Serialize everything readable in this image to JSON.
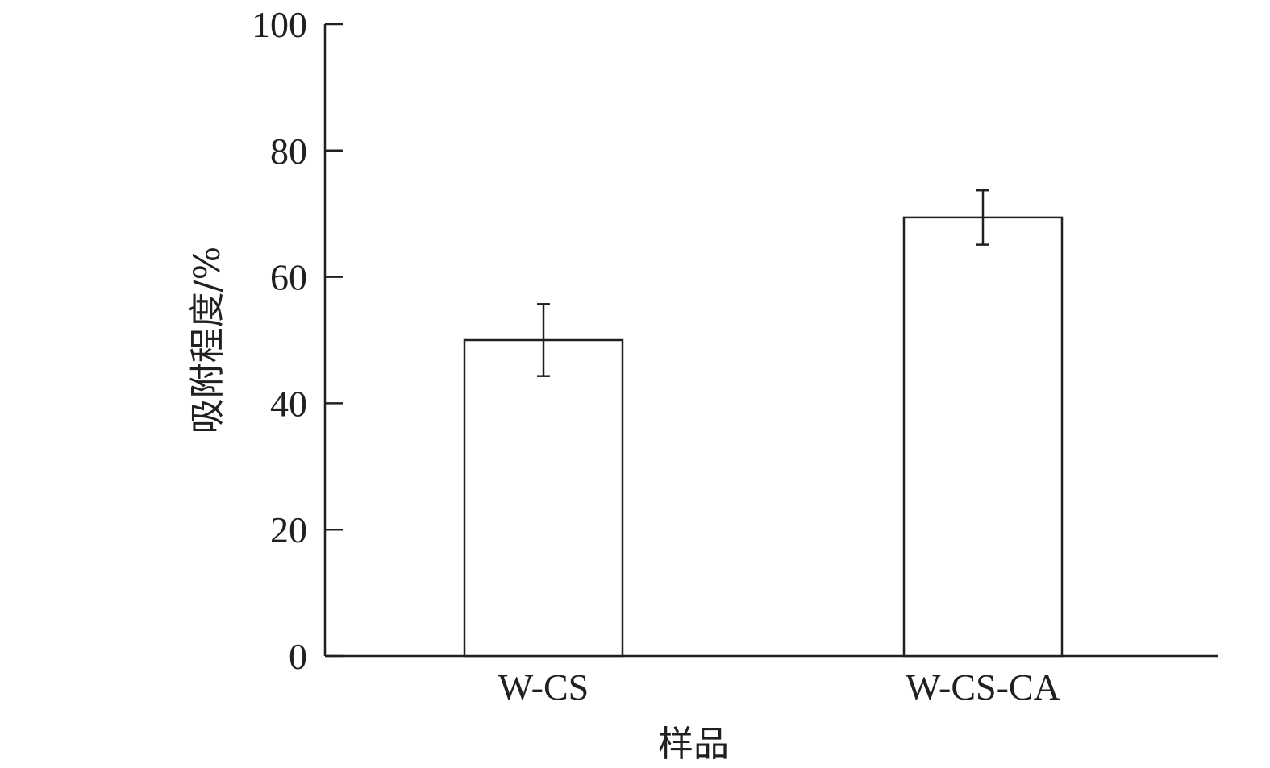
{
  "chart_data": {
    "type": "bar",
    "title": "",
    "xlabel": "样品",
    "ylabel": "吸附程度/%",
    "categories": [
      "W-CS",
      "W-CS-CA"
    ],
    "values": [
      50.0,
      69.4
    ],
    "error": [
      5.7,
      4.3
    ],
    "ylim": [
      0,
      100
    ],
    "yticks": [
      0,
      20,
      40,
      60,
      80,
      100
    ],
    "grid": false,
    "legend": "none",
    "bar_fill": "#ffffff",
    "line_color": "#231f20"
  }
}
